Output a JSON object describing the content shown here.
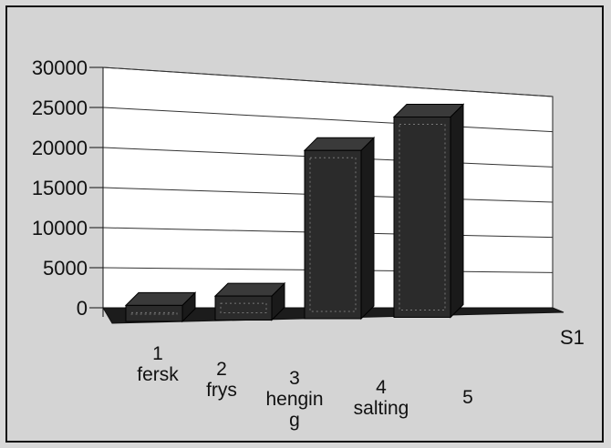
{
  "chart_data": {
    "type": "bar",
    "categories": [
      [
        "1",
        "fersk"
      ],
      [
        "2",
        "frys"
      ],
      [
        "3",
        "hengin",
        "g"
      ],
      [
        "4",
        "salting"
      ],
      [
        "5"
      ]
    ],
    "series": [
      {
        "name": "S1",
        "values": [
          2000,
          3000,
          21000,
          25000,
          0
        ]
      }
    ],
    "y_ticks": [
      0,
      5000,
      10000,
      15000,
      20000,
      25000,
      30000
    ],
    "ylim": [
      0,
      30000
    ],
    "grid": true,
    "legend": "right",
    "colors": {
      "bar_face": "#2b2b2b",
      "bar_side": "#1a1a1a",
      "bar_top": "#3a3a3a",
      "floor": "#1c1c1c",
      "wall": "#ffffff"
    }
  }
}
